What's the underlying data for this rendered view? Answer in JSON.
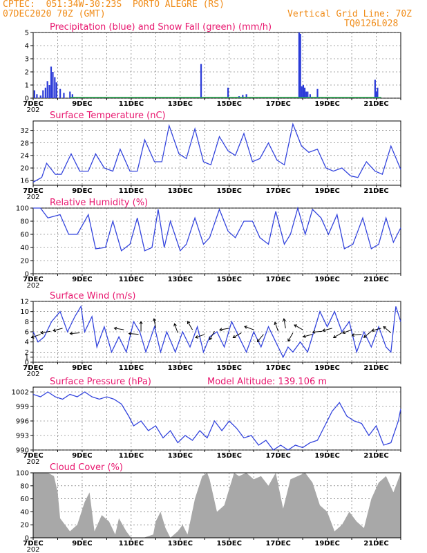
{
  "header": {
    "station": "CPTEC:  051:34W-30:23S  PORTO ALEGRE (RS)",
    "run": "07DEC2020 70Z (GMT)",
    "grid_note": "Vertical Grid Line: 70Z",
    "code": "TQ0126L028"
  },
  "colors": {
    "precip": "#2b3bd8",
    "snow": "#22a84a",
    "line": "#3344dd",
    "cloud": "#a8a8a8",
    "title": "#e8166e",
    "header": "#f08c19"
  },
  "x_axis": {
    "start": "07DEC2020",
    "days": 15,
    "labels": [
      {
        "day": 0,
        "text": "7DEC"
      },
      {
        "day": 2,
        "text": "9DEC"
      },
      {
        "day": 4,
        "text": "11DEC"
      },
      {
        "day": 6,
        "text": "13DEC"
      },
      {
        "day": 8,
        "text": "15DEC"
      },
      {
        "day": 10,
        "text": "17DEC"
      },
      {
        "day": 12,
        "text": "19DEC"
      },
      {
        "day": 14,
        "text": "21DEC"
      }
    ],
    "year_label": "202"
  },
  "chart_data": [
    {
      "id": "precip",
      "type": "bar",
      "title": "Precipitation (blue) and Snow Fall (green) (mm/h)",
      "ylim": [
        0,
        5
      ],
      "yticks": [
        0,
        1,
        2,
        3,
        4,
        5
      ],
      "series": [
        {
          "name": "Precipitation",
          "color": "#2b3bd8",
          "x": [
            0.05,
            0.15,
            0.3,
            0.4,
            0.5,
            0.58,
            0.66,
            0.73,
            0.8,
            0.88,
            0.95,
            1.1,
            1.25,
            1.5,
            1.6,
            6.85,
            7.95,
            8.4,
            8.55,
            8.7,
            10.85,
            10.9,
            10.96,
            11.02,
            11.08,
            11.14,
            11.2,
            11.3,
            11.6,
            13.95,
            14.0,
            14.05
          ],
          "y": [
            0.6,
            0.3,
            0.2,
            0.6,
            0.8,
            1.3,
            1.0,
            2.4,
            2.0,
            1.6,
            1.2,
            0.7,
            0.4,
            0.5,
            0.3,
            2.6,
            0.8,
            0.15,
            0.25,
            0.3,
            5.0,
            4.9,
            0.9,
            1.0,
            0.8,
            0.5,
            0.5,
            0.3,
            0.7,
            1.4,
            0.5,
            0.8
          ]
        },
        {
          "name": "Snow Fall",
          "color": "#22a84a",
          "x": [],
          "y": []
        }
      ]
    },
    {
      "id": "temp",
      "type": "line",
      "title": "Surface Temperature (nC)",
      "ylim": [
        14.5,
        35
      ],
      "yticks": [
        16,
        20,
        24,
        28,
        32
      ],
      "x": [
        0,
        0.35,
        0.55,
        0.9,
        1.15,
        1.55,
        1.9,
        2.25,
        2.55,
        2.9,
        3.25,
        3.55,
        3.95,
        4.25,
        4.55,
        4.95,
        5.25,
        5.55,
        5.95,
        6.25,
        6.6,
        6.95,
        7.25,
        7.6,
        7.95,
        8.25,
        8.6,
        8.95,
        9.25,
        9.6,
        9.95,
        10.25,
        10.6,
        10.95,
        11.25,
        11.6,
        11.95,
        12.25,
        12.6,
        12.95,
        13.25,
        13.6,
        13.95,
        14.25,
        14.6,
        15.0
      ],
      "y": [
        15.5,
        17,
        21.5,
        18,
        18,
        24.5,
        19,
        19,
        24.5,
        20,
        19,
        26,
        19,
        19,
        29,
        22,
        22,
        33.5,
        24.5,
        23,
        32.5,
        22,
        21,
        30,
        25.5,
        24,
        31,
        22,
        23,
        28,
        22.5,
        21,
        34,
        27,
        25,
        26,
        20,
        19,
        20,
        17.5,
        17,
        22,
        19,
        18,
        27,
        19.5
      ]
    },
    {
      "id": "rh",
      "type": "line",
      "title": "Relative Humidity (%)",
      "ylim": [
        0,
        100
      ],
      "yticks": [
        0,
        20,
        40,
        60,
        80,
        100
      ],
      "x": [
        0,
        0.3,
        0.6,
        1.1,
        1.45,
        1.8,
        2.25,
        2.55,
        2.95,
        3.25,
        3.6,
        3.95,
        4.25,
        4.55,
        4.85,
        5.1,
        5.35,
        5.6,
        6.0,
        6.25,
        6.6,
        6.95,
        7.2,
        7.6,
        7.95,
        8.25,
        8.6,
        8.95,
        9.25,
        9.6,
        9.9,
        10.25,
        10.5,
        10.8,
        11.1,
        11.4,
        11.75,
        12.05,
        12.4,
        12.7,
        13.05,
        13.45,
        13.8,
        14.1,
        14.4,
        14.7,
        15.0
      ],
      "y": [
        100,
        100,
        85,
        90,
        60,
        60,
        90,
        38,
        40,
        80,
        35,
        45,
        85,
        35,
        40,
        98,
        40,
        80,
        35,
        45,
        85,
        45,
        55,
        98,
        65,
        55,
        80,
        80,
        55,
        45,
        95,
        45,
        60,
        100,
        60,
        98,
        85,
        60,
        90,
        38,
        45,
        85,
        38,
        45,
        85,
        48,
        70
      ]
    },
    {
      "id": "wind",
      "type": "line",
      "title": "Surface Wind (m/s)",
      "ylim": [
        0,
        12
      ],
      "yticks": [
        0,
        1,
        2,
        4,
        6,
        8,
        10,
        12
      ],
      "x": [
        0,
        0.2,
        0.45,
        0.75,
        1.1,
        1.4,
        1.7,
        1.95,
        2.1,
        2.4,
        2.6,
        2.9,
        3.2,
        3.5,
        3.8,
        4.1,
        4.35,
        4.6,
        4.95,
        5.2,
        5.45,
        5.8,
        6.1,
        6.4,
        6.7,
        6.95,
        7.2,
        7.5,
        7.8,
        8.1,
        8.4,
        8.7,
        9.0,
        9.3,
        9.6,
        9.9,
        10.2,
        10.4,
        10.6,
        10.9,
        11.2,
        11.45,
        11.7,
        12.0,
        12.3,
        12.6,
        12.9,
        13.2,
        13.5,
        13.8,
        14.1,
        14.4,
        14.6,
        14.8,
        15.0
      ],
      "y": [
        6,
        4,
        5,
        8,
        10,
        6,
        9,
        11,
        6,
        9,
        3,
        7,
        2,
        5,
        2,
        8,
        6,
        2,
        7,
        2,
        6,
        2,
        6,
        3,
        7,
        2,
        5,
        6,
        3,
        8,
        5,
        2,
        6,
        3,
        7,
        4,
        1,
        3,
        2,
        4,
        2,
        6,
        10,
        7,
        10,
        6,
        8,
        2,
        6,
        3,
        7,
        3,
        2,
        11,
        8
      ]
    },
    {
      "id": "pres",
      "type": "line",
      "title": "Surface Pressure (hPa)",
      "note": "Model Altitude: 139.106 m",
      "ylim": [
        990,
        1003
      ],
      "yticks": [
        990,
        993,
        996,
        999,
        1002
      ],
      "x": [
        0,
        0.3,
        0.6,
        0.9,
        1.2,
        1.5,
        1.8,
        2.1,
        2.4,
        2.7,
        3.0,
        3.3,
        3.6,
        3.9,
        4.1,
        4.4,
        4.7,
        5.0,
        5.3,
        5.6,
        5.9,
        6.2,
        6.5,
        6.8,
        7.1,
        7.4,
        7.7,
        8.0,
        8.3,
        8.6,
        8.9,
        9.2,
        9.5,
        9.8,
        10.1,
        10.4,
        10.7,
        11.0,
        11.3,
        11.6,
        11.9,
        12.2,
        12.5,
        12.8,
        13.1,
        13.4,
        13.7,
        14.0,
        14.3,
        14.6,
        14.9,
        15.0
      ],
      "y": [
        1001.5,
        1001,
        1002,
        1001,
        1000.5,
        1001.5,
        1001,
        1002,
        1001,
        1000.5,
        1001,
        1000.5,
        999.5,
        997,
        995,
        996,
        994,
        995,
        992.5,
        994,
        991.5,
        993,
        992,
        994,
        992.5,
        996,
        994,
        996,
        994.5,
        992.5,
        993,
        991,
        992,
        990,
        991,
        990,
        991,
        990.5,
        991.5,
        992,
        995,
        998,
        999.8,
        997,
        996,
        995.5,
        993,
        995,
        991,
        991.5,
        996,
        998.5
      ]
    },
    {
      "id": "cloud",
      "type": "area",
      "title": "Cloud Cover (%)",
      "ylim": [
        0,
        100
      ],
      "yticks": [
        0,
        20,
        40,
        60,
        80,
        100
      ],
      "x": [
        0,
        0.6,
        0.85,
        1.0,
        1.1,
        1.5,
        1.8,
        2.1,
        2.3,
        2.5,
        2.8,
        3.1,
        3.35,
        3.5,
        3.8,
        4.0,
        4.5,
        4.9,
        5.0,
        5.2,
        5.4,
        5.6,
        5.9,
        6.1,
        6.3,
        6.6,
        6.9,
        7.1,
        7.2,
        7.5,
        7.8,
        8.0,
        8.2,
        8.4,
        8.7,
        9.0,
        9.3,
        9.6,
        9.9,
        10.2,
        10.5,
        10.8,
        11.1,
        11.4,
        11.7,
        12.0,
        12.3,
        12.6,
        12.9,
        13.2,
        13.5,
        13.8,
        14.1,
        14.4,
        14.7,
        15.0
      ],
      "y": [
        100,
        100,
        95,
        70,
        30,
        10,
        20,
        55,
        70,
        10,
        35,
        25,
        5,
        30,
        10,
        0,
        0,
        5,
        25,
        40,
        15,
        0,
        10,
        20,
        5,
        60,
        95,
        100,
        90,
        40,
        50,
        75,
        100,
        95,
        100,
        90,
        95,
        80,
        100,
        45,
        90,
        95,
        100,
        85,
        50,
        40,
        10,
        20,
        40,
        25,
        15,
        60,
        85,
        95,
        70,
        100
      ]
    }
  ]
}
